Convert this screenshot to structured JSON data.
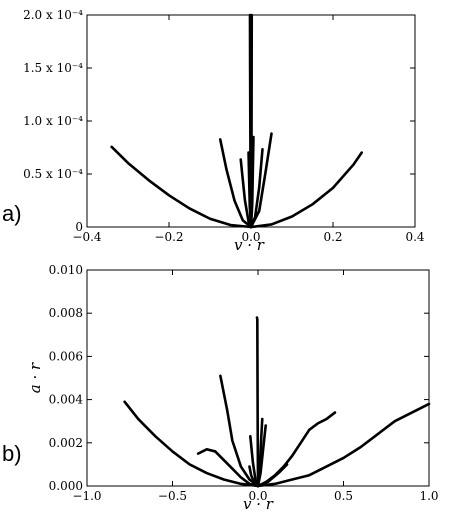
{
  "chart_data": [
    {
      "type": "line",
      "panel_label": "a)",
      "xlabel": "v · r",
      "ylabel": "",
      "xlim": [
        -0.4,
        0.4
      ],
      "ylim": [
        0,
        0.0002
      ],
      "xticks": [
        -0.4,
        -0.2,
        0.0,
        0.2,
        0.4
      ],
      "xtick_labels": [
        "−0.4",
        "−0.2",
        "0.0",
        "0.2",
        "0.4"
      ],
      "yticks": [
        0,
        5e-05,
        0.0001,
        0.00015,
        0.0002
      ],
      "ytick_labels": [
        "0",
        "0.5 x 10⁻⁴",
        "1.0 x 10⁻⁴",
        "1.5 x 10⁻⁴",
        "2.0 x 10⁻⁴"
      ],
      "grid": false,
      "series": [
        {
          "x": [
            -0.34,
            -0.3,
            -0.25,
            -0.2,
            -0.15,
            -0.1,
            -0.05,
            0.0
          ],
          "y": [
            7.56e-05,
            6.04e-05,
            4.43e-05,
            2.99e-05,
            1.75e-05,
            7.8e-06,
            1.9e-06,
            0
          ]
        },
        {
          "x": [
            0.0,
            0.05,
            0.1,
            0.15,
            0.2,
            0.25,
            0.27
          ],
          "y": [
            0,
            2.4e-06,
            9.9e-06,
            2.14e-05,
            3.69e-05,
            5.89e-05,
            7.02e-05
          ]
        },
        {
          "x": [
            -0.075,
            -0.06,
            -0.04,
            -0.02,
            0.0
          ],
          "y": [
            8.26e-05,
            5.46e-05,
            2.46e-05,
            6.3e-06,
            0
          ]
        },
        {
          "x": [
            0.0,
            0.02,
            0.035,
            0.05
          ],
          "y": [
            0,
            1.51e-05,
            5.06e-05,
            8.81e-05
          ]
        },
        {
          "x": [
            -0.025,
            -0.015,
            -0.005,
            0.0
          ],
          "y": [
            6.36e-05,
            2.57e-05,
            2.9e-06,
            0
          ]
        },
        {
          "x": [
            0.0,
            0.01,
            0.02,
            0.028
          ],
          "y": [
            0,
            9.4e-06,
            3.74e-05,
            7.33e-05
          ]
        },
        {
          "x": [
            -0.006,
            -0.003,
            0.0
          ],
          "y": [
            7.02e-05,
            1.93e-05,
            0
          ]
        },
        {
          "x": [
            0.0,
            0.003,
            0.006
          ],
          "y": [
            0,
            2.12e-05,
            8.49e-05
          ]
        },
        {
          "x": [
            -0.0025,
            -0.0022,
            -0.0015,
            -0.001,
            0.0
          ],
          "y": [
            0.0002,
            0.00015,
            8e-05,
            3e-05,
            0
          ]
        },
        {
          "x": [
            0.0,
            0.001,
            0.0015,
            0.0018
          ],
          "y": [
            0,
            4e-05,
            0.00012,
            0.0002
          ]
        }
      ]
    },
    {
      "type": "line",
      "panel_label": "b)",
      "xlabel": "v · r",
      "ylabel": "a · r",
      "xlim": [
        -1.0,
        1.0
      ],
      "ylim": [
        0,
        0.01
      ],
      "xticks": [
        -1.0,
        -0.5,
        0.0,
        0.5,
        1.0
      ],
      "xtick_labels": [
        "−1.0",
        "−0.5",
        "0.0",
        "0.5",
        "1.0"
      ],
      "yticks": [
        0,
        0.002,
        0.004,
        0.006,
        0.008,
        0.01
      ],
      "ytick_labels": [
        "0.000",
        "0.002",
        "0.004",
        "0.006",
        "0.008",
        "0.010"
      ],
      "grid": false,
      "series": [
        {
          "x": [
            -0.78,
            -0.7,
            -0.6,
            -0.5,
            -0.4,
            -0.3,
            -0.2,
            -0.1,
            0.0
          ],
          "y": [
            0.0039,
            0.0031,
            0.0023,
            0.0016,
            0.001,
            0.0006,
            0.0003,
            0.0001,
            0
          ]
        },
        {
          "x": [
            0.0,
            0.1,
            0.2,
            0.3,
            0.4,
            0.5,
            0.6,
            0.7,
            0.8,
            0.9,
            1.0
          ],
          "y": [
            0,
            0.0001,
            0.0003,
            0.0005,
            0.0009,
            0.0013,
            0.0018,
            0.0024,
            0.003,
            0.0034,
            0.0038
          ]
        },
        {
          "x": [
            -0.35,
            -0.3,
            -0.25,
            -0.2,
            -0.15,
            -0.1,
            -0.05,
            0.0
          ],
          "y": [
            0.0015,
            0.0017,
            0.0016,
            0.0012,
            0.0008,
            0.0004,
            0.0001,
            0
          ]
        },
        {
          "x": [
            0.0,
            0.05,
            0.1,
            0.15,
            0.2,
            0.25,
            0.3,
            0.35,
            0.4,
            0.45
          ],
          "y": [
            0,
            0.0002,
            0.0005,
            0.0009,
            0.0014,
            0.002,
            0.0026,
            0.0029,
            0.0031,
            0.0034
          ]
        },
        {
          "x": [
            -0.22,
            -0.18,
            -0.15,
            -0.1,
            -0.05,
            0.0
          ],
          "y": [
            0.0051,
            0.0035,
            0.0021,
            0.0009,
            0.0003,
            0
          ]
        },
        {
          "x": [
            -0.045,
            -0.03,
            -0.015,
            0.0
          ],
          "y": [
            0.0023,
            0.0011,
            0.0003,
            0
          ]
        },
        {
          "x": [
            0.0,
            0.015,
            0.03,
            0.045
          ],
          "y": [
            0,
            0.0006,
            0.0017,
            0.0028
          ]
        },
        {
          "x": [
            0.0,
            0.01,
            0.02,
            0.025
          ],
          "y": [
            0,
            0.0008,
            0.0024,
            0.0031
          ]
        },
        {
          "x": [
            -0.006,
            -0.004,
            -0.002,
            0.0
          ],
          "y": [
            0.0078,
            0.0077,
            0.003,
            0
          ]
        },
        {
          "x": [
            0.0,
            0.06,
            0.12,
            0.17
          ],
          "y": [
            0,
            0.0002,
            0.0006,
            0.001
          ]
        },
        {
          "x": [
            -0.05,
            -0.04,
            -0.02,
            0.0
          ],
          "y": [
            0.0009,
            0.0005,
            0.0001,
            0
          ]
        }
      ]
    }
  ]
}
